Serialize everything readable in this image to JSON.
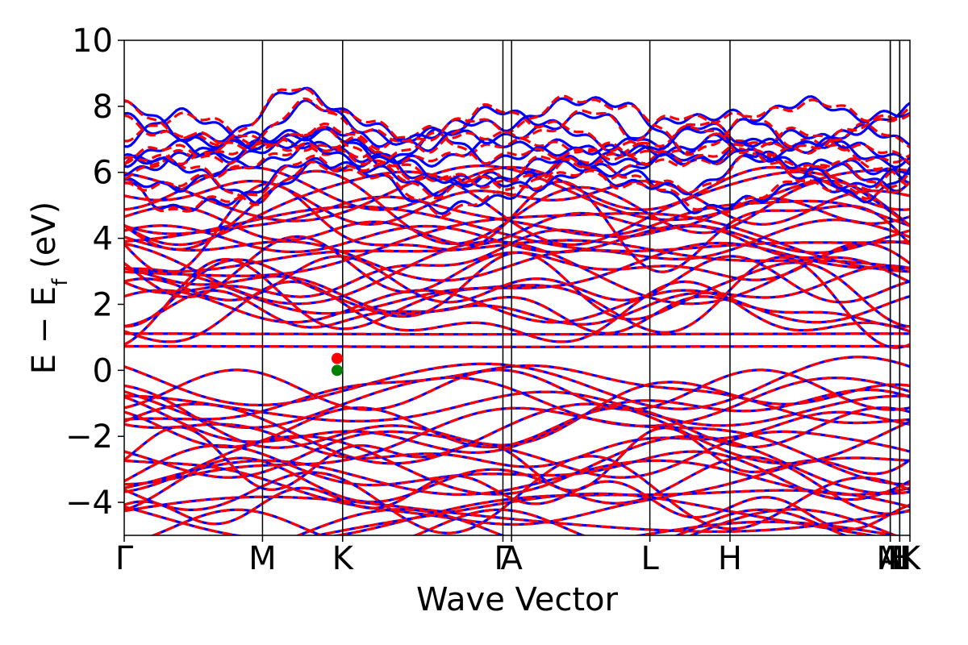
{
  "chart_data": {
    "type": "line",
    "title": "",
    "xlabel": "Wave Vector",
    "ylabel_main": "E − E",
    "ylabel_sub": "f",
    "ylabel_unit": " (eV)",
    "ylim": [
      -5,
      10
    ],
    "yticks": [
      -4,
      -2,
      0,
      2,
      4,
      6,
      8,
      10
    ],
    "ytick_labels": [
      "−4",
      "−2",
      "0",
      "2",
      "4",
      "6",
      "8",
      "10"
    ],
    "xlim": [
      0,
      1
    ],
    "high_symmetry_points": [
      {
        "label": "Γ",
        "x": 0.0
      },
      {
        "label": "M",
        "x": 0.176
      },
      {
        "label": "K",
        "x": 0.278
      },
      {
        "label": "Γ",
        "x": 0.482
      },
      {
        "label": "A",
        "x": 0.493
      },
      {
        "label": "L",
        "x": 0.669
      },
      {
        "label": "H",
        "x": 0.771
      },
      {
        "label": "A",
        "x": 0.975
      },
      {
        "label": "M",
        "x": 0.975
      },
      {
        "label": "L",
        "x": 0.987
      },
      {
        "label": "H",
        "x": 0.987
      },
      {
        "label": "K",
        "x": 1.0
      }
    ],
    "series": [
      {
        "style": "solid",
        "color": "#0000ff"
      },
      {
        "style": "dashed",
        "color": "#ff0000"
      }
    ],
    "band_edges": {
      "vbm": {
        "x": 0.271,
        "y": 0.0,
        "color": "#008000"
      },
      "cbm": {
        "x": 0.271,
        "y": 0.36,
        "color": "#ff0000"
      }
    },
    "grid": false,
    "legend": "none"
  }
}
